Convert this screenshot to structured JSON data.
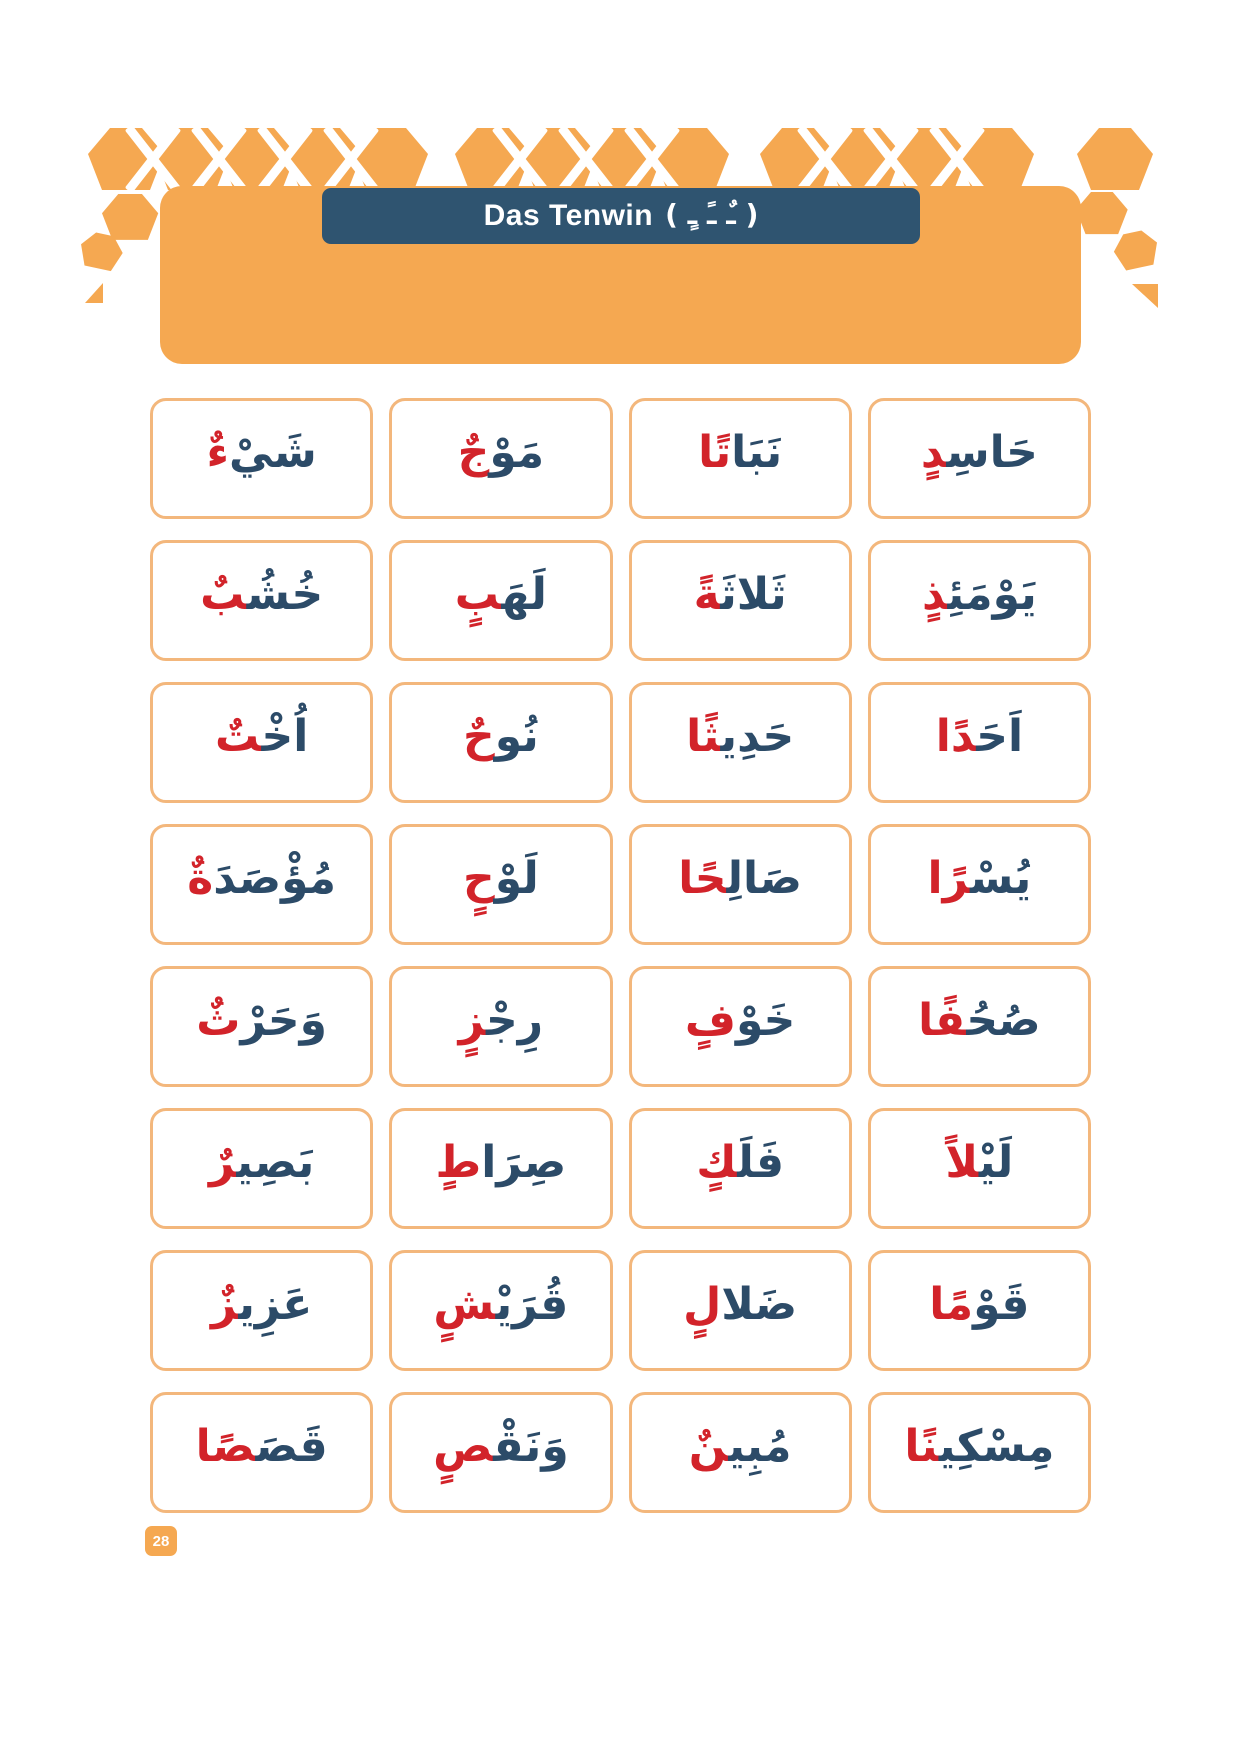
{
  "page": {
    "page_number": "28"
  },
  "header": {
    "title": "Das Tenwin",
    "tanween_marks": "( ـٌ ـً ـٍ )"
  },
  "colors": {
    "orange": "#F5A851",
    "card_border": "#F3B77C",
    "header_bar_blue": "#2F5470",
    "word_navy": "#2C4B68",
    "word_red": "#D2232A",
    "card_bg": "#FFFFFF",
    "page_bg": "#FFFFFF",
    "badge_text": "#FFFFFF"
  },
  "grid": {
    "reading_direction": "rtl",
    "note": "cells are in Arabic reading order, rightmost card first; dark = navy part, red = tanween part",
    "rows": [
      {
        "cells": [
          {
            "word": "حَاسِدٍ",
            "dark": "حَاسِ‍",
            "red": "‍دٍ"
          },
          {
            "word": "نَبَاتًا",
            "dark": "نَبَا",
            "red": "تًا"
          },
          {
            "word": "مَوْجٌ",
            "dark": "مَوْ",
            "red": "جٌ"
          },
          {
            "word": "شَيْءٌ",
            "dark": "شَيْ",
            "red": "ءٌ"
          }
        ]
      },
      {
        "cells": [
          {
            "word": "يَوْمَئِذٍ",
            "dark": "يَوْمَئِ‍",
            "red": "‍ذٍ"
          },
          {
            "word": "ثَلاثَةً",
            "dark": "ثَلاثَ‍",
            "red": "‍ةً"
          },
          {
            "word": "لَهَبٍ",
            "dark": "لَهَ‍",
            "red": "‍بٍ"
          },
          {
            "word": "خُشُبٌ",
            "dark": "خُشُ‍",
            "red": "‍بٌ"
          }
        ]
      },
      {
        "cells": [
          {
            "word": "اَحَدًا",
            "dark": "اَحَ‍",
            "red": "‍دًا"
          },
          {
            "word": "حَدِيثًا",
            "dark": "حَدِي‍",
            "red": "‍ثًا"
          },
          {
            "word": "نُوحٌ",
            "dark": "نُو",
            "red": "حٌ"
          },
          {
            "word": "اُخْتٌ",
            "dark": "اُخْ‍",
            "red": "‍تٌ"
          }
        ]
      },
      {
        "cells": [
          {
            "word": "يُسْرًا",
            "dark": "يُسْ‍",
            "red": "‍رًا"
          },
          {
            "word": "صَالِحًا",
            "dark": "صَالِ‍",
            "red": "‍حًا"
          },
          {
            "word": "لَوْحٍ",
            "dark": "لَوْ",
            "red": "حٍ"
          },
          {
            "word": "مُؤْصَدَةٌ",
            "dark": "مُؤْصَدَ",
            "red": "ةٌ"
          }
        ]
      },
      {
        "cells": [
          {
            "word": "صُحُفًا",
            "dark": "صُحُ‍",
            "red": "‍فًا"
          },
          {
            "word": "خَوْفٍ",
            "dark": "خَوْ",
            "red": "فٍ"
          },
          {
            "word": "رِجْزٍ",
            "dark": "رِجْ‍",
            "red": "‍زٍ"
          },
          {
            "word": "وَحَرْثٌ",
            "dark": "وَحَرْ",
            "red": "ثٌ"
          }
        ]
      },
      {
        "cells": [
          {
            "word": "لَيْلاً",
            "dark": "لَيْ‍",
            "red": "‍لاً"
          },
          {
            "word": "فَلَكٍ",
            "dark": "فَلَ‍",
            "red": "‍كٍ"
          },
          {
            "word": "صِرَاطٍ",
            "dark": "صِرَا",
            "red": "طٍ"
          },
          {
            "word": "بَصِيرٌ",
            "dark": "بَصِي‍",
            "red": "‍رٌ"
          }
        ]
      },
      {
        "cells": [
          {
            "word": "قَوْمًا",
            "dark": "قَوْ",
            "red": "مًا"
          },
          {
            "word": "ضَلالٍ",
            "dark": "ضَلا",
            "red": "لٍ"
          },
          {
            "word": "قُرَيْشٍ",
            "dark": "قُرَيْ‍",
            "red": "‍شٍ"
          },
          {
            "word": "عَزِيزٌ",
            "dark": "عَزِي‍",
            "red": "‍زٌ"
          }
        ]
      },
      {
        "cells": [
          {
            "word": "مِسْكِينًا",
            "dark": "مِسْكِي‍",
            "red": "‍نًا"
          },
          {
            "word": "مُبِينٌ",
            "dark": "مُبِي‍",
            "red": "‍نٌ"
          },
          {
            "word": "وَنَقْصٍ",
            "dark": "وَنَقْ‍",
            "red": "‍صٍ"
          },
          {
            "word": "قَصَصًا",
            "dark": "قَصَ‍",
            "red": "‍صًا"
          }
        ]
      }
    ]
  }
}
